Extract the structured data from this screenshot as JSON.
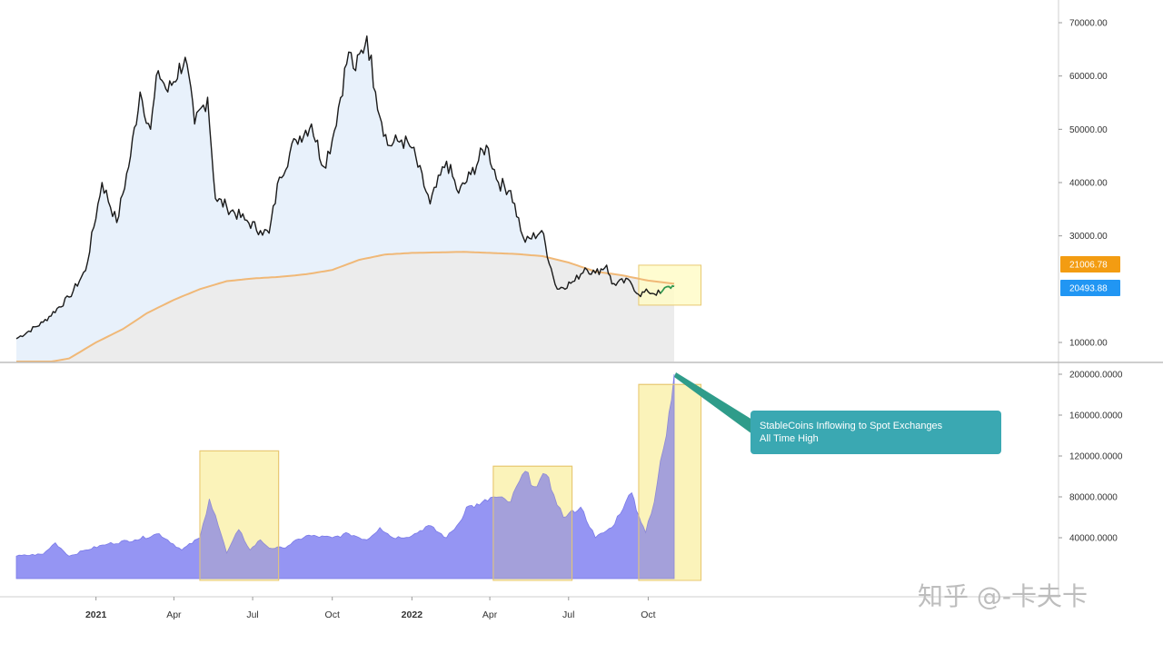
{
  "colors": {
    "price_line": "#1a1a1a",
    "price_fill": "#e8f1fb",
    "ma_line": "#f0b877",
    "ma_fill": "#ececec",
    "stable_fill": "#8c8cf2",
    "highlight_fill": "#fffbc8",
    "highlight_stroke": "#e8c872",
    "tag_orange": "#f39c12",
    "tag_blue": "#2196f3",
    "annotation_bg": "#3aa8b2",
    "annotation_pointer": "#2f9c8a",
    "axis_line": "#cfcfcf",
    "watermark": "#bdbdbd"
  },
  "chart_data": [
    {
      "type": "line",
      "panel": "price",
      "title": "",
      "ylabel": "",
      "ylim": [
        5000,
        73000
      ],
      "y_ticks": [
        {
          "value": 10000,
          "label": "10000.00"
        },
        {
          "value": 30000,
          "label": "30000.00"
        },
        {
          "value": 40000,
          "label": "40000.00"
        },
        {
          "value": 50000,
          "label": "50000.00"
        },
        {
          "value": 60000,
          "label": "60000.00"
        },
        {
          "value": 70000,
          "label": "70000.00"
        }
      ],
      "price_tags": [
        {
          "value": 21000,
          "label": "21006.78",
          "color": "orange"
        },
        {
          "value": 20400,
          "label": "20493.88",
          "color": "blue"
        }
      ],
      "series": [
        {
          "key": "price",
          "x": [
            "2020-10-01",
            "2020-11-01",
            "2020-12-01",
            "2020-12-20",
            "2021-01-08",
            "2021-01-25",
            "2021-02-10",
            "2021-02-21",
            "2021-03-05",
            "2021-03-14",
            "2021-03-25",
            "2021-04-14",
            "2021-04-25",
            "2021-05-10",
            "2021-05-19",
            "2021-06-01",
            "2021-06-22",
            "2021-07-10",
            "2021-07-20",
            "2021-08-01",
            "2021-08-20",
            "2021-09-07",
            "2021-09-21",
            "2021-10-01",
            "2021-10-20",
            "2021-10-28",
            "2021-11-10",
            "2021-11-20",
            "2021-12-04",
            "2021-12-20",
            "2022-01-01",
            "2022-01-22",
            "2022-02-10",
            "2022-02-24",
            "2022-03-10",
            "2022-03-28",
            "2022-04-11",
            "2022-04-25",
            "2022-05-09",
            "2022-05-12",
            "2022-05-31",
            "2022-06-13",
            "2022-06-18",
            "2022-07-08",
            "2022-07-20",
            "2022-08-01",
            "2022-08-14",
            "2022-08-20",
            "2022-09-10",
            "2022-09-20",
            "2022-10-01",
            "2022-10-15",
            "2022-10-25",
            "2022-10-31"
          ],
          "values": [
            10700,
            13800,
            18500,
            23500,
            40000,
            32500,
            45000,
            57000,
            50000,
            61000,
            57000,
            63500,
            51000,
            56000,
            37000,
            35500,
            33000,
            31000,
            30500,
            41000,
            48000,
            51000,
            43000,
            48000,
            64500,
            61000,
            67500,
            57000,
            47000,
            48000,
            46500,
            36000,
            44000,
            38000,
            41500,
            47000,
            40000,
            38500,
            30000,
            28800,
            31000,
            22500,
            20000,
            21500,
            24000,
            23000,
            24500,
            21000,
            21500,
            19000,
            19500,
            19200,
            20500,
            20493
          ]
        },
        {
          "key": "moving_average",
          "x": [
            "2020-10-01",
            "2020-12-01",
            "2021-01-01",
            "2021-02-01",
            "2021-03-01",
            "2021-04-01",
            "2021-05-01",
            "2021-06-01",
            "2021-07-01",
            "2021-08-01",
            "2021-09-01",
            "2021-10-01",
            "2021-11-01",
            "2021-12-01",
            "2022-01-01",
            "2022-02-01",
            "2022-03-01",
            "2022-04-01",
            "2022-05-01",
            "2022-06-01",
            "2022-07-01",
            "2022-08-01",
            "2022-09-01",
            "2022-10-01",
            "2022-10-31"
          ],
          "values": [
            5200,
            7000,
            10000,
            12500,
            15500,
            18000,
            20000,
            21500,
            22000,
            22300,
            22800,
            23600,
            25500,
            26500,
            26800,
            26900,
            27000,
            26800,
            26600,
            26200,
            25000,
            23300,
            22600,
            21600,
            21006
          ]
        }
      ]
    },
    {
      "type": "area",
      "panel": "stablecoin",
      "title": "",
      "ylabel": "",
      "ylim": [
        0,
        205000
      ],
      "y_ticks": [
        {
          "value": 40000,
          "label": "40000.0000"
        },
        {
          "value": 80000,
          "label": "80000.0000"
        },
        {
          "value": 120000,
          "label": "120000.0000"
        },
        {
          "value": 160000,
          "label": "160000.0000"
        },
        {
          "value": 200000,
          "label": "200000.0000"
        }
      ],
      "x_ticks": [
        {
          "date": "2021-01-01",
          "label": "2021",
          "bold": true
        },
        {
          "date": "2021-04-01",
          "label": "Apr",
          "bold": false
        },
        {
          "date": "2021-07-01",
          "label": "Jul",
          "bold": false
        },
        {
          "date": "2021-10-01",
          "label": "Oct",
          "bold": false
        },
        {
          "date": "2022-01-01",
          "label": "2022",
          "bold": true
        },
        {
          "date": "2022-04-01",
          "label": "Apr",
          "bold": false
        },
        {
          "date": "2022-07-01",
          "label": "Jul",
          "bold": false
        },
        {
          "date": "2022-10-01",
          "label": "Oct",
          "bold": false
        }
      ],
      "series": [
        {
          "key": "stablecoin_inflow",
          "x": [
            "2020-10-01",
            "2020-11-01",
            "2020-11-15",
            "2020-12-01",
            "2020-12-20",
            "2021-01-15",
            "2021-02-15",
            "2021-03-15",
            "2021-04-10",
            "2021-05-01",
            "2021-05-12",
            "2021-05-19",
            "2021-06-01",
            "2021-06-15",
            "2021-06-28",
            "2021-07-10",
            "2021-07-20",
            "2021-08-05",
            "2021-09-01",
            "2021-10-01",
            "2021-10-20",
            "2021-11-10",
            "2021-11-25",
            "2021-12-10",
            "2022-01-01",
            "2022-01-20",
            "2022-02-10",
            "2022-02-25",
            "2022-03-05",
            "2022-03-20",
            "2022-04-05",
            "2022-04-25",
            "2022-05-05",
            "2022-05-12",
            "2022-05-22",
            "2022-06-05",
            "2022-06-14",
            "2022-06-25",
            "2022-07-15",
            "2022-08-01",
            "2022-08-20",
            "2022-09-05",
            "2022-09-12",
            "2022-09-20",
            "2022-09-28",
            "2022-10-01",
            "2022-10-08",
            "2022-10-15",
            "2022-10-22",
            "2022-10-28",
            "2022-10-31"
          ],
          "values": [
            22000,
            24000,
            35000,
            22000,
            28000,
            34000,
            38000,
            44000,
            28000,
            40000,
            78000,
            62000,
            25000,
            48000,
            28000,
            38000,
            30000,
            30000,
            42000,
            40000,
            44000,
            38000,
            50000,
            40000,
            42000,
            52000,
            40000,
            55000,
            70000,
            72000,
            80000,
            75000,
            95000,
            105000,
            90000,
            102000,
            82000,
            60000,
            70000,
            40000,
            50000,
            75000,
            84000,
            62000,
            45000,
            56000,
            75000,
            115000,
            140000,
            175000,
            200000
          ]
        }
      ]
    }
  ],
  "highlights": [
    {
      "panel": "price",
      "x_start": "2022-09-20",
      "x_end": "2022-12-01",
      "y_top": 24500,
      "y_bottom": 17000
    },
    {
      "panel": "stablecoin",
      "x_start": "2021-05-01",
      "x_end": "2021-07-31",
      "y_top": 125000,
      "y_bottom": 0
    },
    {
      "panel": "stablecoin",
      "x_start": "2022-04-05",
      "x_end": "2022-07-05",
      "y_top": 110000,
      "y_bottom": 0
    },
    {
      "panel": "stablecoin",
      "x_start": "2022-09-20",
      "x_end": "2022-12-01",
      "y_top": 190000,
      "y_bottom": 0
    }
  ],
  "annotation": {
    "line1": "StableCoins Inflowing to Spot Exchanges",
    "line2": "All Time High"
  },
  "watermark": "知乎 @-卡夫卡"
}
